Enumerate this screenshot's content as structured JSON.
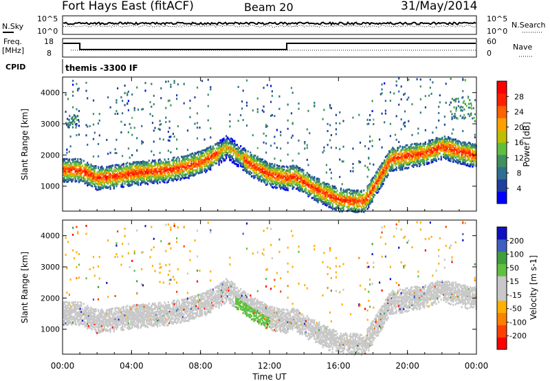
{
  "header": {
    "station": "Fort Hays East (fitACF)",
    "beam": "Beam 20",
    "date": "31/May/2014",
    "cpid_label": "CPID",
    "cpid_value": "themis -3300 IF"
  },
  "sky_panel": {
    "left_label": "N.Sky",
    "right_label": "N.Search",
    "left_ticks": [
      "10^5",
      "10^0"
    ],
    "right_ticks": [
      "10^5",
      "10^0"
    ]
  },
  "freq_panel": {
    "left_label_1": "Freq.",
    "left_label_2": "[MHz]",
    "right_label": "Nave",
    "left_ticks": [
      "18",
      "8"
    ],
    "right_ticks": [
      "60",
      "0"
    ]
  },
  "colors": {
    "power_scale": [
      "#0000ff",
      "#1f3f9f",
      "#2f6f8f",
      "#3f8f5f",
      "#5fbf3f",
      "#bfbf00",
      "#ffa000",
      "#ff6000",
      "#ff2000",
      "#ff0000"
    ],
    "velocity_scale": [
      "#ff0000",
      "#ff4000",
      "#ff8000",
      "#ffb000",
      "#c8c8c8",
      "#c8c8c8",
      "#60c040",
      "#3f9f3f",
      "#3f5fbf",
      "#1010c0"
    ]
  },
  "chart_data": [
    {
      "type": "heatmap",
      "name": "power",
      "ylabel": "Slant Range [km]",
      "yticks": [
        "1000",
        "2000",
        "3000",
        "4000"
      ],
      "ylim": [
        200,
        4500
      ],
      "colorbar_label": "Power [dB]",
      "colorbar_ticks": [
        "4",
        "8",
        "12",
        "16",
        "20",
        "24",
        "28"
      ],
      "colorbar_range": [
        0,
        32
      ],
      "bands": [
        {
          "t": [
            0.0,
            1.0,
            2.0,
            3.0,
            4.0,
            5.0,
            6.0,
            7.0,
            8.0,
            9.0,
            9.5,
            10.0,
            11.0,
            12.0,
            13.0,
            13.5,
            14.0,
            15.0,
            16.0,
            17.0,
            17.5,
            19.0,
            21.0,
            22.0,
            24.0
          ],
          "range": [
            1550,
            1550,
            1300,
            1350,
            1450,
            1500,
            1550,
            1650,
            1800,
            2100,
            2300,
            2100,
            1700,
            1400,
            1300,
            1350,
            1150,
            850,
            600,
            550,
            550,
            1900,
            2100,
            2300,
            2000
          ],
          "power": 26
        }
      ]
    },
    {
      "type": "heatmap",
      "name": "velocity",
      "ylabel": "Slant Range [km]",
      "yticks": [
        "1000",
        "2000",
        "3000",
        "4000"
      ],
      "ylim": [
        200,
        4500
      ],
      "colorbar_label": "Velocity [m s-1]",
      "colorbar_ticks": [
        "-200",
        "-100",
        "-50",
        "-15",
        "15",
        "50",
        "100",
        "200"
      ],
      "colorbar_range": [
        -250,
        250
      ]
    }
  ],
  "time_axis": {
    "xlabel": "Time UT",
    "ticks": [
      "00:00",
      "04:00",
      "08:00",
      "12:00",
      "16:00",
      "20:00",
      "00:00"
    ],
    "xlim": [
      0,
      24
    ]
  }
}
